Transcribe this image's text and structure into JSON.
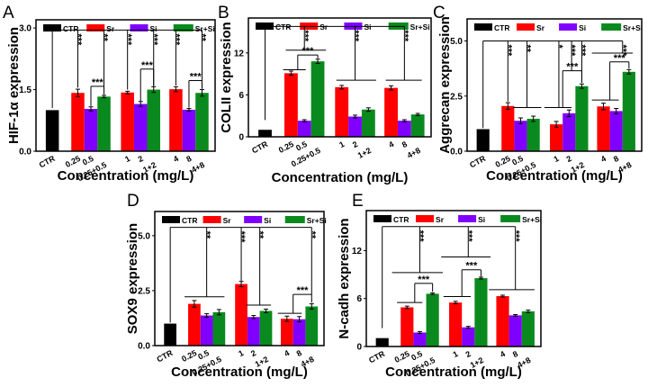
{
  "colors": {
    "CTR": "#000000",
    "Sr": "#ff0000",
    "Si": "#8000ff",
    "Sr+Si": "#0a8a1e"
  },
  "legend": [
    "CTR",
    "Sr",
    "Si",
    "Sr+Si"
  ],
  "xlabel": "Concentration (mg/L)",
  "xtick_labels": [
    "CTR",
    "0.25",
    "0.5",
    "0.25+0.5",
    "1",
    "2",
    "1+2",
    "4",
    "8",
    "4+8"
  ],
  "bar_groups": [
    "CTR",
    "Sr",
    "Si",
    "Sr+Si",
    "Sr",
    "Si",
    "Sr+Si",
    "Sr",
    "Si",
    "Sr+Si"
  ],
  "chart_data": [
    {
      "panel": "A",
      "type": "bar",
      "ylabel": "HIF-1α expression",
      "xlabel": "Concentration (mg/L)",
      "ylim": [
        0,
        3.2
      ],
      "yticks": [
        0,
        1.5,
        3.0
      ],
      "ytick_labels": [
        "0.0",
        "1.5",
        "3.0"
      ],
      "values": [
        1.0,
        1.42,
        1.03,
        1.33,
        1.43,
        1.15,
        1.5,
        1.51,
        1.01,
        1.42
      ],
      "errors": [
        0,
        0.09,
        0.05,
        0.03,
        0.03,
        0.06,
        0.07,
        0.06,
        0.03,
        0.08
      ],
      "ctr_tree": {
        "y": 2.95,
        "ctr_end": 1.05,
        "targets": [
          {
            "x": 1,
            "end": 1.55,
            "label": "***"
          },
          {
            "x": 3,
            "end": 1.42,
            "label": "**"
          },
          {
            "x": 4,
            "end": 1.5,
            "label": "***"
          },
          {
            "x": 6,
            "end": 1.6,
            "label": "***"
          },
          {
            "x": 7,
            "end": 1.6,
            "label": "***"
          },
          {
            "x": 9,
            "end": 1.52,
            "label": "**"
          }
        ]
      },
      "group_lines": [],
      "brackets": [
        {
          "from": 2,
          "to": 3,
          "y": 1.58,
          "left_end": 1.1,
          "right_end": 1.38,
          "label": "***"
        },
        {
          "from": 5,
          "to": 6,
          "y": 2.0,
          "left_end": 1.22,
          "right_end": 1.58,
          "label": "***"
        },
        {
          "from": 8,
          "to": 9,
          "y": 1.72,
          "left_end": 1.06,
          "right_end": 1.52,
          "label": "***"
        }
      ]
    },
    {
      "panel": "B",
      "type": "bar",
      "ylabel": "COLII expression",
      "xlabel": "Concentration (mg/L)",
      "ylim": [
        0,
        17
      ],
      "yticks": [
        0,
        6,
        12
      ],
      "ytick_labels": [
        "0",
        "6",
        "12"
      ],
      "values": [
        1.0,
        9.1,
        2.3,
        10.8,
        7.1,
        2.9,
        3.9,
        7.0,
        2.3,
        3.2
      ],
      "errors": [
        0,
        0.3,
        0.15,
        0.3,
        0.25,
        0.2,
        0.25,
        0.3,
        0.15,
        0.15
      ],
      "ctr_tree": {
        "y": 15.8,
        "ctr_end": 2.4,
        "targets": [
          {
            "x": 2,
            "end": 12.4,
            "label": "***"
          },
          {
            "x": 5,
            "end": 8.1,
            "label": "***"
          },
          {
            "x": 8,
            "end": 8.1,
            "label": "***"
          }
        ]
      },
      "group_lines": [
        {
          "from": 1,
          "to": 3.4,
          "y": 12.4
        },
        {
          "from": 4,
          "to": 6.4,
          "y": 8.1
        },
        {
          "from": 7,
          "to": 9.4,
          "y": 8.1
        },
        {
          "from": 0.9,
          "to": 2.2,
          "y": 9.6
        }
      ],
      "brackets": [
        {
          "from": 1.5,
          "to": 3,
          "y": 11.7,
          "left_end": 9.6,
          "right_end": 11.2,
          "label": "***"
        }
      ]
    },
    {
      "panel": "C",
      "type": "bar",
      "ylabel": "Aggrecan expression",
      "xlabel": "Concentration (mg/L)",
      "ylim": [
        0,
        6
      ],
      "yticks": [
        0,
        2.5,
        5.0
      ],
      "ytick_labels": [
        "0.0",
        "2.5",
        "5.0"
      ],
      "values": [
        1.0,
        2.05,
        1.38,
        1.47,
        1.22,
        1.72,
        2.95,
        2.03,
        1.82,
        3.6
      ],
      "errors": [
        0,
        0.15,
        0.13,
        0.12,
        0.13,
        0.15,
        0.1,
        0.15,
        0.12,
        0.1
      ],
      "ctr_tree": {
        "y": 5.0,
        "ctr_end": 1.05,
        "targets": [
          {
            "x": 1,
            "end": 2.25,
            "label": "***"
          },
          {
            "x": 2.5,
            "end": 1.98,
            "label": "**"
          },
          {
            "x": 4.2,
            "end": 1.98,
            "label": "*"
          },
          {
            "x": 5.2,
            "end": 3.65,
            "label": "***"
          },
          {
            "x": 6,
            "end": 3.1,
            "label": "***"
          },
          {
            "x": 8.5,
            "end": 4.45,
            "label": "***"
          }
        ]
      },
      "group_lines": [
        {
          "from": 1.8,
          "to": 3.4,
          "y": 1.98
        },
        {
          "from": 3.7,
          "to": 5.3,
          "y": 1.98
        },
        {
          "from": 6.7,
          "to": 9.4,
          "y": 4.45
        },
        {
          "from": 6.7,
          "to": 8.3,
          "y": 2.32
        }
      ],
      "brackets": [
        {
          "from": 4.5,
          "to": 6,
          "y": 3.65,
          "left_end": 1.98,
          "right_end": 3.1,
          "label": "***"
        },
        {
          "from": 7.5,
          "to": 9,
          "y": 4.05,
          "left_end": 2.32,
          "right_end": 3.75,
          "label": "***"
        }
      ]
    },
    {
      "panel": "D",
      "type": "bar",
      "ylabel": "SOX9 expression",
      "xlabel": "Concentration (mg/L)",
      "ylim": [
        0,
        6.1
      ],
      "yticks": [
        0,
        2.5,
        5.0
      ],
      "ytick_labels": [
        "0.0",
        "2.5",
        "5.0"
      ],
      "values": [
        1.0,
        1.9,
        1.37,
        1.52,
        2.8,
        1.3,
        1.58,
        1.22,
        1.2,
        1.78
      ],
      "errors": [
        0,
        0.15,
        0.08,
        0.12,
        0.12,
        0.07,
        0.08,
        0.12,
        0.12,
        0.12
      ],
      "ctr_tree": {
        "y": 5.38,
        "ctr_end": 1.05,
        "targets": [
          {
            "x": 2,
            "end": 2.22,
            "label": "**"
          },
          {
            "x": 4,
            "end": 2.95,
            "label": "***"
          },
          {
            "x": 5.5,
            "end": 1.84,
            "label": "**"
          },
          {
            "x": 9,
            "end": 2.33,
            "label": "**"
          }
        ]
      },
      "group_lines": [
        {
          "from": 0.8,
          "to": 3.3,
          "y": 2.22
        },
        {
          "from": 4.8,
          "to": 6.3,
          "y": 1.84
        },
        {
          "from": 6.8,
          "to": 8.3,
          "y": 1.47
        }
      ],
      "brackets": [
        {
          "from": 7.5,
          "to": 9,
          "y": 2.33,
          "left_end": 1.47,
          "right_end": 1.95,
          "label": "***"
        }
      ]
    },
    {
      "panel": "E",
      "type": "bar",
      "ylabel": "N-cadh expression",
      "xlabel": "Concentration (mg/L)",
      "ylim": [
        0,
        17
      ],
      "yticks": [
        0,
        6,
        12
      ],
      "ytick_labels": [
        "0",
        "6",
        "12"
      ],
      "values": [
        1.05,
        4.9,
        1.75,
        6.6,
        5.5,
        2.4,
        8.55,
        6.3,
        3.9,
        4.4
      ],
      "errors": [
        0,
        0.15,
        0.12,
        0.1,
        0.15,
        0.12,
        0.12,
        0.12,
        0.1,
        0.15
      ],
      "ctr_tree": {
        "y": 15.0,
        "ctr_end": 2.3,
        "targets": [
          {
            "x": 2,
            "end": 9.25,
            "label": "***"
          },
          {
            "x": 5,
            "end": 11.2,
            "label": "***"
          },
          {
            "x": 8,
            "end": 7.1,
            "label": "***"
          }
        ]
      },
      "group_lines": [
        {
          "from": 0.6,
          "to": 3.5,
          "y": 9.25
        },
        {
          "from": 3.6,
          "to": 6.5,
          "y": 11.2
        },
        {
          "from": 6.6,
          "to": 9.6,
          "y": 7.1
        },
        {
          "from": 0.8,
          "to": 2.3,
          "y": 5.5
        },
        {
          "from": 3.7,
          "to": 5.3,
          "y": 6.25
        }
      ],
      "brackets": [
        {
          "from": 1.6,
          "to": 3,
          "y": 7.9,
          "left_end": 5.5,
          "right_end": 6.85,
          "label": "***"
        },
        {
          "from": 4.5,
          "to": 6,
          "y": 9.6,
          "left_end": 6.25,
          "right_end": 8.75,
          "label": "***"
        }
      ]
    }
  ]
}
